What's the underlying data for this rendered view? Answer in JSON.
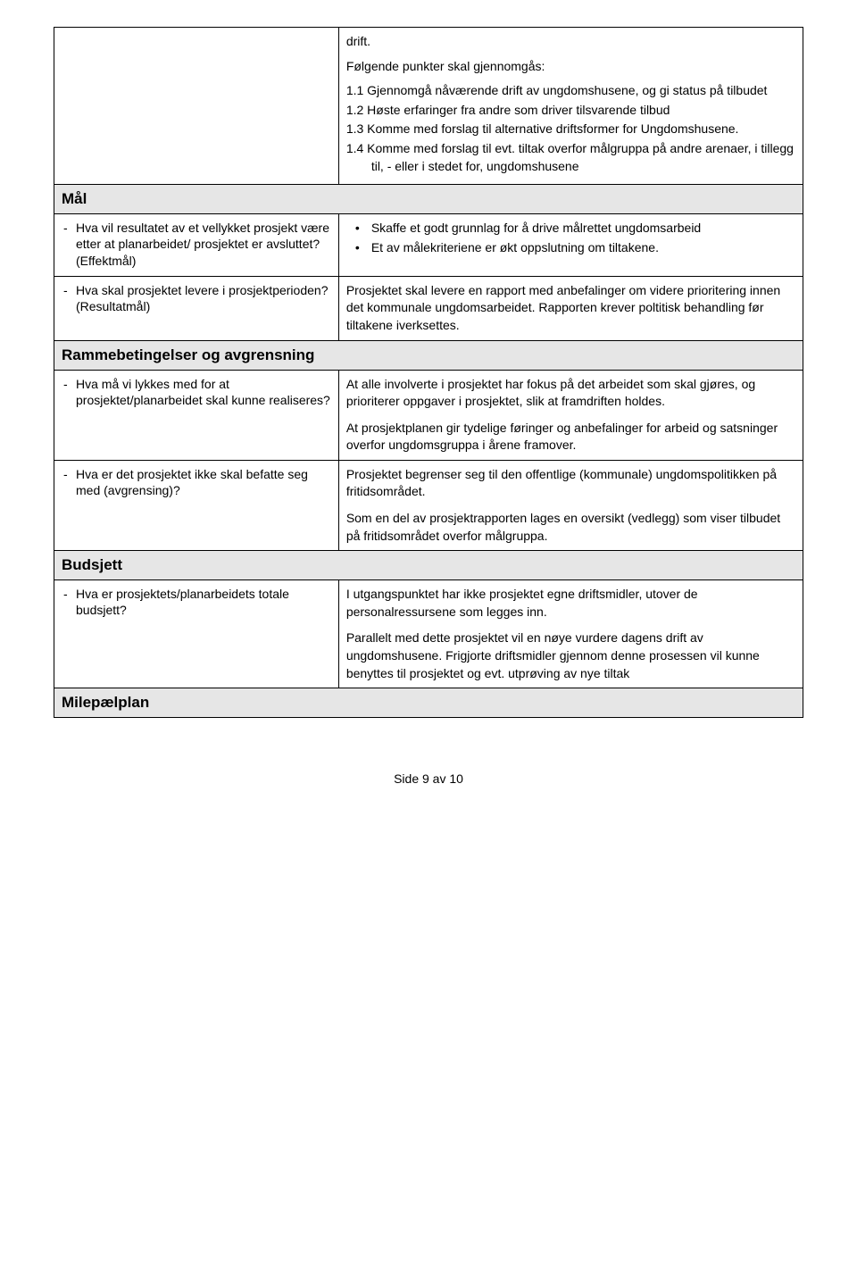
{
  "colors": {
    "page_bg": "#ffffff",
    "text": "#000000",
    "border": "#000000",
    "section_bg": "#e6e6e6"
  },
  "fonts": {
    "body": "Arial, Helvetica, sans-serif",
    "answer": "\"Comic Sans MS\", cursive, sans-serif",
    "body_size_pt": 10.5,
    "section_size_pt": 13
  },
  "intro": {
    "line1": "drift.",
    "line2": "Følgende punkter skal gjennomgås:",
    "items": {
      "i1": "1.1 Gjennomgå nåværende drift av ungdomshusene, og gi status på tilbudet",
      "i2": "1.2 Høste erfaringer fra andre som driver tilsvarende tilbud",
      "i3": "1.3 Komme med forslag til alternative driftsformer for Ungdomshusene.",
      "i4": "1.4 Komme med forslag til evt. tiltak overfor målgruppa på andre arenaer, i tillegg til, - eller i stedet for, ungdomshusene"
    }
  },
  "sections": {
    "mal": {
      "title": "Mål",
      "q1": "Hva vil resultatet av et vellykket prosjekt være etter at planarbeidet/ prosjektet er avsluttet? (Effektmål)",
      "a1": {
        "b1": "Skaffe et godt grunnlag for å drive målrettet ungdomsarbeid",
        "b2": "Et av målekriteriene er økt oppslutning om tiltakene."
      },
      "q2": "Hva skal prosjektet levere i prosjektperioden? (Resultatmål)",
      "a2": "Prosjektet skal levere en rapport med anbefalinger om videre prioritering  innen det kommunale ungdomsarbeidet. Rapporten krever poltitisk behandling før tiltakene iverksettes."
    },
    "ramme": {
      "title": "Rammebetingelser og avgrensning",
      "q1": "Hva må vi lykkes med for at prosjektet/planarbeidet skal kunne realiseres?",
      "a1": {
        "p1": "At alle involverte i prosjektet har fokus på det arbeidet som skal gjøres, og prioriterer oppgaver i prosjektet, slik at framdriften holdes.",
        "p2": "At prosjektplanen gir tydelige føringer og anbefalinger for arbeid og satsninger overfor ungdomsgruppa i årene framover."
      },
      "q2": "Hva er det prosjektet ikke skal befatte seg med (avgrensing)?",
      "a2": {
        "p1": "Prosjektet begrenser seg til den offentlige (kommunale) ungdomspolitikken på fritidsområdet.",
        "p2": "Som en del av prosjektrapporten lages en oversikt (vedlegg) som viser tilbudet på fritidsområdet  overfor målgruppa."
      }
    },
    "budsjett": {
      "title": "Budsjett",
      "q1": "Hva er prosjektets/planarbeidets totale budsjett?",
      "a1": {
        "p1": "I utgangspunktet har ikke prosjektet egne driftsmidler, utover de personalressursene som legges inn.",
        "p2": "Parallelt med dette prosjektet vil en nøye vurdere dagens drift av ungdomshusene. Frigjorte driftsmidler gjennom denne prosessen vil kunne benyttes til prosjektet og evt. utprøving av nye tiltak"
      }
    },
    "milepel": {
      "title": "Milepælplan"
    }
  },
  "footer": "Side 9 av 10"
}
